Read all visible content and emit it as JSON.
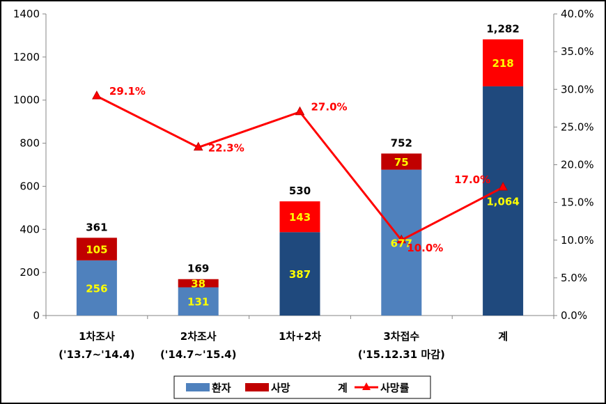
{
  "chart_data": {
    "type": "bar",
    "stacked": true,
    "categories": [
      [
        "1차조사",
        "('13.7~'14.4)"
      ],
      [
        "2차조사",
        "('14.7~'15.4)"
      ],
      [
        "1차+2차"
      ],
      [
        "3차접수",
        "('15.12.31 마감)"
      ],
      [
        "계"
      ]
    ],
    "series": [
      {
        "name": "환자",
        "values": [
          256,
          131,
          387,
          677,
          1064
        ],
        "label_color": "#ffff00",
        "bar_colors": [
          "#4f81bd",
          "#4f81bd",
          "#1f497d",
          "#4f81bd",
          "#1f497d"
        ]
      },
      {
        "name": "사망",
        "values": [
          105,
          38,
          143,
          75,
          218
        ],
        "color": "#c00000",
        "color_alt": "#ff0000",
        "label_color": "#ffff00",
        "bar_colors": [
          "#c00000",
          "#c00000",
          "#ff0000",
          "#c00000",
          "#ff0000"
        ]
      }
    ],
    "totals": {
      "name": "계",
      "values": [
        "361",
        "169",
        "530",
        "752",
        "1,282"
      ]
    },
    "line": {
      "name": "사망률",
      "values": [
        29.1,
        22.3,
        27.0,
        10.0,
        17.0
      ],
      "labels": [
        "29.1%",
        "22.3%",
        "27.0%",
        "10.0%",
        "17.0%"
      ],
      "color": "#ff0000",
      "axis": "right"
    },
    "value_labels": [
      [
        "256",
        "131",
        "387",
        "677",
        "1,064"
      ],
      [
        "105",
        "38",
        "143",
        "75",
        "218"
      ]
    ],
    "y_left": {
      "min": 0,
      "max": 1400,
      "ticks": [
        "0",
        "200",
        "400",
        "600",
        "800",
        "1000",
        "1200",
        "1400"
      ]
    },
    "y_right": {
      "min": 0,
      "max": 40,
      "ticks": [
        "0.0%",
        "5.0%",
        "10.0%",
        "15.0%",
        "20.0%",
        "25.0%",
        "30.0%",
        "35.0%",
        "40.0%"
      ]
    },
    "grid": false,
    "legend_position": "bottom"
  }
}
